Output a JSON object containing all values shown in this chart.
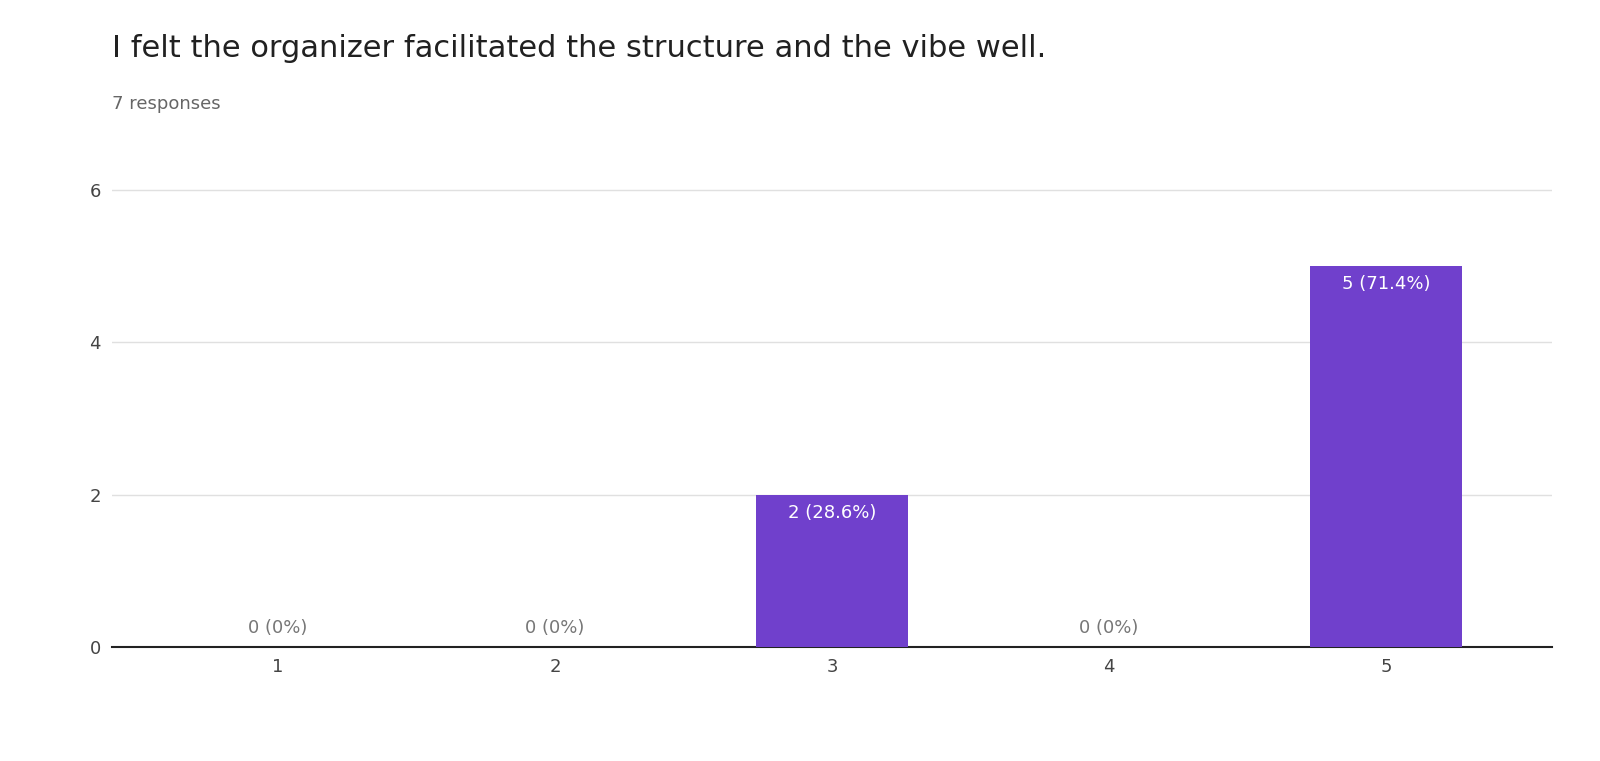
{
  "title": "I felt the organizer facilitated the structure and the vibe well.",
  "subtitle": "7 responses",
  "categories": [
    1,
    2,
    3,
    4,
    5
  ],
  "values": [
    0,
    0,
    2,
    0,
    5
  ],
  "labels": [
    "0 (0%)",
    "0 (0%)",
    "2 (28.6%)",
    "0 (0%)",
    "5 (71.4%)"
  ],
  "bar_color": "#7040CC",
  "label_color_inside": "#ffffff",
  "label_color_outside": "#777777",
  "background_color": "#ffffff",
  "ylim": [
    0,
    6.5
  ],
  "yticks": [
    0,
    2,
    4,
    6
  ],
  "title_fontsize": 22,
  "subtitle_fontsize": 13,
  "tick_fontsize": 13,
  "label_fontsize": 13,
  "grid_color": "#e0e0e0",
  "bar_width": 0.55
}
